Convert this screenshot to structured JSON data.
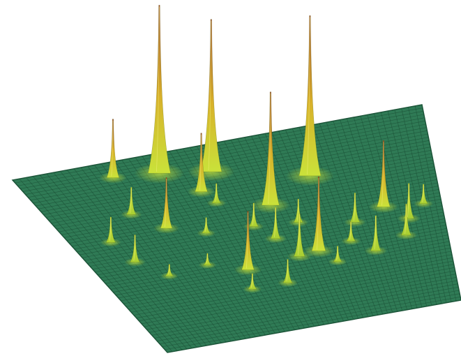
{
  "image": {
    "subject": "3d-surface-plot-with-peaks",
    "colors": {
      "background": "#ffffff",
      "surface": "#2f7a55",
      "surface_dark": "#1f5a3d",
      "mesh": "#184a32",
      "peak_low": "#c9e23a",
      "peak_mid": "#d8b12a",
      "peak_high": "#a4502a"
    },
    "peaks": [
      {
        "u": 0.33,
        "v": 0.1,
        "height": 0.86
      },
      {
        "u": 0.45,
        "v": 0.14,
        "height": 0.78
      },
      {
        "u": 0.22,
        "v": 0.08,
        "height": 0.3
      },
      {
        "u": 0.4,
        "v": 0.23,
        "height": 0.3
      },
      {
        "u": 0.68,
        "v": 0.25,
        "height": 0.82
      },
      {
        "u": 0.55,
        "v": 0.36,
        "height": 0.58
      },
      {
        "u": 0.42,
        "v": 0.3,
        "height": 0.1
      },
      {
        "u": 0.2,
        "v": 0.28,
        "height": 0.14
      },
      {
        "u": 0.26,
        "v": 0.38,
        "height": 0.26
      },
      {
        "u": 0.1,
        "v": 0.4,
        "height": 0.13
      },
      {
        "u": 0.12,
        "v": 0.52,
        "height": 0.14
      },
      {
        "u": 0.35,
        "v": 0.44,
        "height": 0.08
      },
      {
        "u": 0.48,
        "v": 0.45,
        "height": 0.12
      },
      {
        "u": 0.52,
        "v": 0.53,
        "height": 0.16
      },
      {
        "u": 0.4,
        "v": 0.66,
        "height": 0.3
      },
      {
        "u": 0.56,
        "v": 0.64,
        "height": 0.22
      },
      {
        "u": 0.62,
        "v": 0.63,
        "height": 0.38
      },
      {
        "u": 0.75,
        "v": 0.52,
        "height": 0.15
      },
      {
        "u": 0.84,
        "v": 0.47,
        "height": 0.34
      },
      {
        "u": 0.9,
        "v": 0.55,
        "height": 0.18
      },
      {
        "u": 0.95,
        "v": 0.49,
        "height": 0.1
      },
      {
        "u": 0.88,
        "v": 0.63,
        "height": 0.16
      },
      {
        "u": 0.3,
        "v": 0.6,
        "height": 0.06
      },
      {
        "u": 0.66,
        "v": 0.7,
        "height": 0.08
      },
      {
        "u": 0.18,
        "v": 0.62,
        "height": 0.06
      },
      {
        "u": 0.6,
        "v": 0.47,
        "height": 0.12
      },
      {
        "u": 0.72,
        "v": 0.61,
        "height": 0.1
      },
      {
        "u": 0.78,
        "v": 0.68,
        "height": 0.18
      },
      {
        "u": 0.49,
        "v": 0.76,
        "height": 0.12
      },
      {
        "u": 0.38,
        "v": 0.76,
        "height": 0.08
      }
    ]
  }
}
